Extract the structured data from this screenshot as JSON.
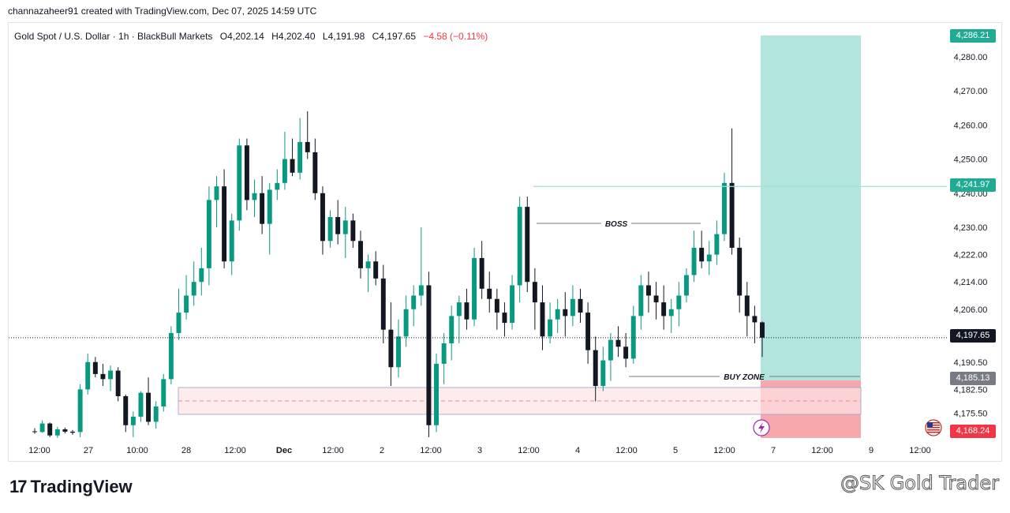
{
  "header": {
    "text": "channazaheer91 created with TradingView.com, Dec 07, 2025 14:59 UTC"
  },
  "legend": {
    "symbol": "Gold Spot / U.S. Dollar · 1h · BlackBull Markets",
    "open": "O4,202.14",
    "high": "H4,202.40",
    "low": "L4,191.98",
    "close": "C4,197.65",
    "change": "−4.58 (−0.11%)",
    "change_color": "#f23645"
  },
  "price_tags": {
    "top": "4,286.21",
    "target": "4,241.97",
    "current": "4,197.65",
    "entry": "4,185.13",
    "stop": "4,168.24"
  },
  "footer": {
    "brand": "TradingView",
    "watermark": "@SK Gold Trader"
  },
  "colors": {
    "up": "#089981",
    "down": "#131722",
    "profit_zone": "#b2e5dc",
    "loss_zone": "#f7a8ad",
    "buy_zone": "#fde2e4",
    "target_line": "#9fe0d4",
    "tag_green": "#22ab94",
    "tag_grey": "#787b86",
    "tag_red": "#f23645"
  },
  "chart_data": {
    "type": "candlestick",
    "symbol": "Gold Spot / U.S. Dollar",
    "interval": "1h",
    "ylim": [
      4168.24,
      4286.21
    ],
    "y_ticks": [
      "4,280.00",
      "4,270.00",
      "4,260.00",
      "4,250.00",
      "4,240.00",
      "4,230.00",
      "4,222.00",
      "4,214.00",
      "4,206.00",
      "4,190.50",
      "4,182.50",
      "4,175.50"
    ],
    "x_ticks": [
      "12:00",
      "27",
      "10:00",
      "28",
      "12:00",
      "Dec",
      "12:00",
      "2",
      "12:00",
      "3",
      "12:00",
      "4",
      "12:00",
      "5",
      "12:00",
      "7",
      "12:00",
      "9",
      "12:00"
    ],
    "annotations": [
      {
        "label": "BOSS",
        "type": "line",
        "price": 4230.5
      },
      {
        "label": "BUY ZONE",
        "type": "line",
        "price": 4185.3
      }
    ],
    "zones": [
      {
        "name": "buy-zone",
        "from": 4175.5,
        "to": 4183.5
      },
      {
        "name": "long-position-profit",
        "from": 4185.13,
        "to": 4286.21
      },
      {
        "name": "long-position-loss",
        "from": 4168.24,
        "to": 4185.13
      }
    ],
    "last_close": 4197.65,
    "candles": [
      [
        4170.2,
        4171.1,
        4169.5,
        4170.0
      ],
      [
        4170.0,
        4173.4,
        4169.8,
        4172.5
      ],
      [
        4172.5,
        4172.8,
        4168.5,
        4169.0
      ],
      [
        4169.0,
        4171.5,
        4168.3,
        4170.8
      ],
      [
        4170.8,
        4171.3,
        4169.6,
        4170.1
      ],
      [
        4170.1,
        4170.6,
        4169.2,
        4169.8
      ],
      [
        4170.0,
        4184.0,
        4168.5,
        4182.5
      ],
      [
        4182.5,
        4193.0,
        4181.0,
        4190.5
      ],
      [
        4190.5,
        4192.0,
        4186.0,
        4187.0
      ],
      [
        4187.0,
        4190.0,
        4183.5,
        4185.5
      ],
      [
        4185.5,
        4189.5,
        4182.0,
        4188.0
      ],
      [
        4188.0,
        4189.0,
        4179.0,
        4180.5
      ],
      [
        4180.5,
        4181.0,
        4170.0,
        4172.0
      ],
      [
        4172.0,
        4176.0,
        4168.5,
        4174.5
      ],
      [
        4174.5,
        4182.0,
        4173.0,
        4181.5
      ],
      [
        4181.5,
        4186.0,
        4172.0,
        4173.0
      ],
      [
        4173.0,
        4179.0,
        4171.0,
        4177.5
      ],
      [
        4177.5,
        4187.0,
        4176.0,
        4185.5
      ],
      [
        4185.5,
        4201.0,
        4184.0,
        4199.0
      ],
      [
        4199.0,
        4212.0,
        4197.0,
        4205.0
      ],
      [
        4205.0,
        4216.0,
        4203.0,
        4210.0
      ],
      [
        4210.0,
        4220.0,
        4207.0,
        4214.0
      ],
      [
        4214.0,
        4224.0,
        4210.0,
        4218.0
      ],
      [
        4218.0,
        4242.0,
        4213.0,
        4238.0
      ],
      [
        4238.0,
        4245.0,
        4230.0,
        4242.0
      ],
      [
        4242.0,
        4247.0,
        4218.0,
        4220.0
      ],
      [
        4220.0,
        4234.0,
        4216.0,
        4232.0
      ],
      [
        4232.0,
        4256.0,
        4229.0,
        4254.0
      ],
      [
        4254.0,
        4256.0,
        4235.0,
        4238.0
      ],
      [
        4238.0,
        4244.0,
        4233.0,
        4240.0
      ],
      [
        4240.0,
        4245.0,
        4228.0,
        4231.0
      ],
      [
        4231.0,
        4243.0,
        4222.0,
        4241.0
      ],
      [
        4241.0,
        4247.0,
        4238.0,
        4243.0
      ],
      [
        4243.0,
        4258.0,
        4241.0,
        4250.0
      ],
      [
        4250.0,
        4256.0,
        4245.0,
        4246.0
      ],
      [
        4246.0,
        4262.0,
        4244.0,
        4255.0
      ],
      [
        4255.0,
        4264.0,
        4250.0,
        4252.0
      ],
      [
        4252.0,
        4256.0,
        4238.0,
        4240.0
      ],
      [
        4240.0,
        4242.0,
        4222.0,
        4226.0
      ],
      [
        4226.0,
        4235.0,
        4224.0,
        4233.0
      ],
      [
        4233.0,
        4238.0,
        4225.0,
        4228.0
      ],
      [
        4228.0,
        4236.0,
        4221.0,
        4232.0
      ],
      [
        4232.0,
        4234.0,
        4224.0,
        4226.0
      ],
      [
        4226.0,
        4229.0,
        4215.0,
        4218.0
      ],
      [
        4218.0,
        4222.0,
        4211.0,
        4220.0
      ],
      [
        4220.0,
        4223.0,
        4213.0,
        4215.0
      ],
      [
        4215.0,
        4219.0,
        4196.0,
        4200.0
      ],
      [
        4200.0,
        4208.0,
        4183.5,
        4189.0
      ],
      [
        4189.0,
        4203.0,
        4186.0,
        4198.0
      ],
      [
        4198.0,
        4210.0,
        4195.0,
        4206.0
      ],
      [
        4206.0,
        4213.0,
        4201.0,
        4210.0
      ],
      [
        4210.0,
        4230.0,
        4207.0,
        4213.0
      ],
      [
        4213.0,
        4217.0,
        4168.5,
        4172.0
      ],
      [
        4172.0,
        4193.0,
        4170.0,
        4190.0
      ],
      [
        4190.0,
        4199.0,
        4184.0,
        4196.0
      ],
      [
        4196.0,
        4207.0,
        4191.0,
        4204.0
      ],
      [
        4204.0,
        4210.0,
        4196.0,
        4208.0
      ],
      [
        4208.0,
        4212.0,
        4200.0,
        4203.0
      ],
      [
        4203.0,
        4224.0,
        4201.0,
        4221.0
      ],
      [
        4221.0,
        4226.0,
        4209.0,
        4212.0
      ],
      [
        4212.0,
        4217.0,
        4205.0,
        4209.0
      ],
      [
        4209.0,
        4212.0,
        4200.0,
        4205.0
      ],
      [
        4205.0,
        4208.0,
        4198.0,
        4202.0
      ],
      [
        4202.0,
        4216.0,
        4200.0,
        4213.0
      ],
      [
        4213.0,
        4239.0,
        4208.0,
        4236.0
      ],
      [
        4236.0,
        4239.0,
        4211.0,
        4214.0
      ],
      [
        4214.0,
        4218.0,
        4200.0,
        4208.0
      ],
      [
        4208.0,
        4213.0,
        4194.0,
        4198.0
      ],
      [
        4198.0,
        4208.0,
        4196.0,
        4203.0
      ],
      [
        4203.0,
        4209.0,
        4199.0,
        4206.0
      ],
      [
        4206.0,
        4211.0,
        4198.0,
        4204.0
      ],
      [
        4204.0,
        4213.0,
        4201.0,
        4209.0
      ],
      [
        4209.0,
        4212.0,
        4202.0,
        4205.0
      ],
      [
        4205.0,
        4208.0,
        4190.0,
        4194.0
      ],
      [
        4194.0,
        4198.0,
        4179.0,
        4183.5
      ],
      [
        4183.5,
        4195.0,
        4182.0,
        4191.0
      ],
      [
        4191.0,
        4199.0,
        4185.0,
        4197.0
      ],
      [
        4197.0,
        4201.0,
        4192.0,
        4195.0
      ],
      [
        4195.0,
        4199.0,
        4189.0,
        4191.5
      ],
      [
        4191.5,
        4207.0,
        4190.0,
        4204.0
      ],
      [
        4204.0,
        4216.0,
        4200.0,
        4213.0
      ],
      [
        4213.0,
        4217.0,
        4205.0,
        4210.0
      ],
      [
        4210.0,
        4214.0,
        4203.0,
        4208.0
      ],
      [
        4208.0,
        4213.0,
        4200.0,
        4204.0
      ],
      [
        4204.0,
        4209.0,
        4199.0,
        4206.0
      ],
      [
        4206.0,
        4214.0,
        4201.0,
        4210.0
      ],
      [
        4210.0,
        4218.0,
        4208.0,
        4216.0
      ],
      [
        4216.0,
        4229.0,
        4214.0,
        4224.0
      ],
      [
        4224.0,
        4229.0,
        4218.0,
        4220.0
      ],
      [
        4220.0,
        4226.0,
        4216.0,
        4222.0
      ],
      [
        4222.0,
        4232.0,
        4219.0,
        4228.0
      ],
      [
        4228.0,
        4246.0,
        4226.0,
        4243.0
      ],
      [
        4243.0,
        4259.0,
        4222.0,
        4224.0
      ],
      [
        4224.0,
        4227.0,
        4205.0,
        4210.0
      ],
      [
        4210.0,
        4214.0,
        4198.0,
        4204.0
      ],
      [
        4204.0,
        4207.0,
        4196.0,
        4202.14
      ],
      [
        4202.14,
        4202.4,
        4191.98,
        4197.65
      ]
    ]
  }
}
